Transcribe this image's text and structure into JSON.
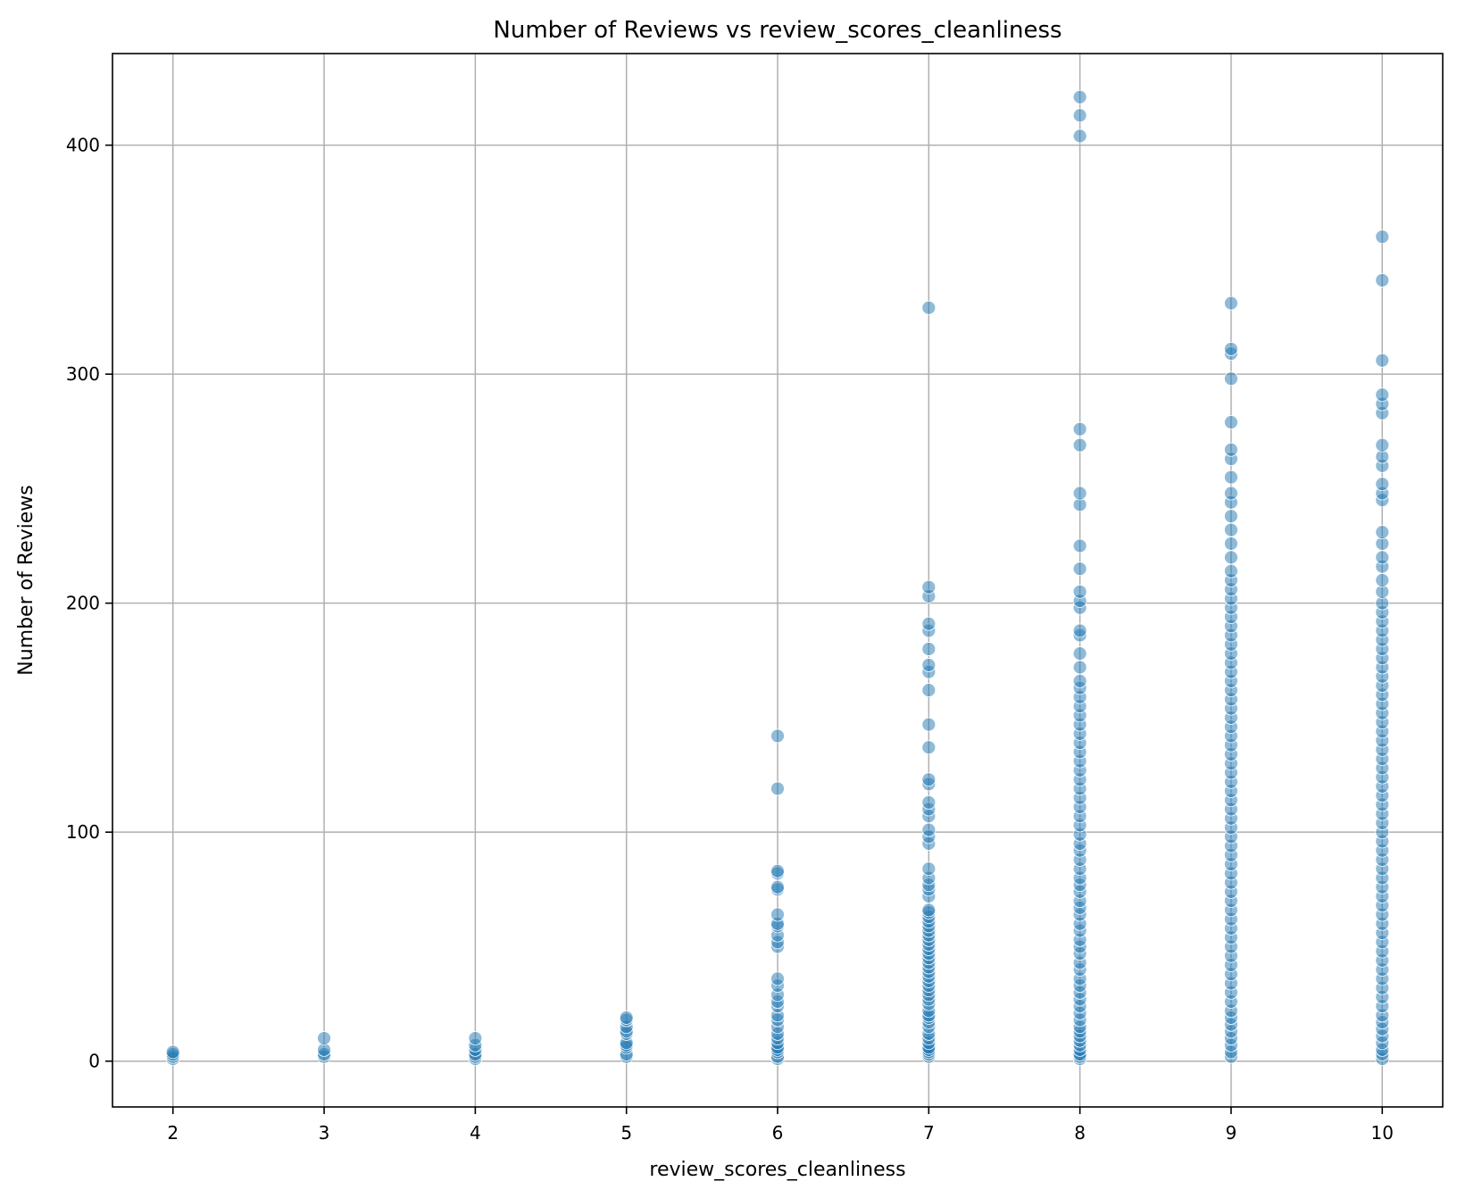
{
  "chart_data": {
    "type": "scatter",
    "title": "Number of Reviews vs review_scores_cleanliness",
    "xlabel": "review_scores_cleanliness",
    "ylabel": "Number of Reviews",
    "xlim": [
      1.6,
      10.4
    ],
    "ylim": [
      -20,
      440
    ],
    "xticks": [
      2,
      3,
      4,
      5,
      6,
      7,
      8,
      9,
      10
    ],
    "yticks": [
      0,
      100,
      200,
      300,
      400
    ],
    "grid": true,
    "point_color": "#1f77b4",
    "series": [
      {
        "points": [
          [
            2,
            1
          ],
          [
            2,
            2
          ],
          [
            2,
            3
          ],
          [
            2,
            4
          ],
          [
            3,
            2
          ],
          [
            3,
            3
          ],
          [
            3,
            5
          ],
          [
            3,
            10
          ],
          [
            4,
            1
          ],
          [
            4,
            2
          ],
          [
            4,
            3
          ],
          [
            4,
            5
          ],
          [
            4,
            7
          ],
          [
            4,
            10
          ],
          [
            5,
            2
          ],
          [
            5,
            3
          ],
          [
            5,
            6
          ],
          [
            5,
            7
          ],
          [
            5,
            8
          ],
          [
            5,
            12
          ],
          [
            5,
            13
          ],
          [
            5,
            15
          ],
          [
            5,
            18
          ],
          [
            5,
            19
          ],
          [
            6,
            1
          ],
          [
            6,
            2
          ],
          [
            6,
            4
          ],
          [
            6,
            5
          ],
          [
            6,
            6
          ],
          [
            6,
            8
          ],
          [
            6,
            10
          ],
          [
            6,
            12
          ],
          [
            6,
            15
          ],
          [
            6,
            18
          ],
          [
            6,
            20
          ],
          [
            6,
            24
          ],
          [
            6,
            26
          ],
          [
            6,
            29
          ],
          [
            6,
            33
          ],
          [
            6,
            36
          ],
          [
            6,
            50
          ],
          [
            6,
            52
          ],
          [
            6,
            55
          ],
          [
            6,
            59
          ],
          [
            6,
            60
          ],
          [
            6,
            64
          ],
          [
            6,
            75
          ],
          [
            6,
            76
          ],
          [
            6,
            82
          ],
          [
            6,
            83
          ],
          [
            6,
            119
          ],
          [
            6,
            142
          ],
          [
            7,
            2
          ],
          [
            7,
            3
          ],
          [
            7,
            4
          ],
          [
            7,
            5
          ],
          [
            7,
            6
          ],
          [
            7,
            8
          ],
          [
            7,
            10
          ],
          [
            7,
            12
          ],
          [
            7,
            15
          ],
          [
            7,
            17
          ],
          [
            7,
            19
          ],
          [
            7,
            20
          ],
          [
            7,
            22
          ],
          [
            7,
            25
          ],
          [
            7,
            27
          ],
          [
            7,
            29
          ],
          [
            7,
            31
          ],
          [
            7,
            33
          ],
          [
            7,
            35
          ],
          [
            7,
            37
          ],
          [
            7,
            39
          ],
          [
            7,
            41
          ],
          [
            7,
            43
          ],
          [
            7,
            45
          ],
          [
            7,
            47
          ],
          [
            7,
            49
          ],
          [
            7,
            51
          ],
          [
            7,
            53
          ],
          [
            7,
            55
          ],
          [
            7,
            57
          ],
          [
            7,
            59
          ],
          [
            7,
            61
          ],
          [
            7,
            63
          ],
          [
            7,
            65
          ],
          [
            7,
            66
          ],
          [
            7,
            72
          ],
          [
            7,
            75
          ],
          [
            7,
            77
          ],
          [
            7,
            80
          ],
          [
            7,
            84
          ],
          [
            7,
            95
          ],
          [
            7,
            98
          ],
          [
            7,
            101
          ],
          [
            7,
            107
          ],
          [
            7,
            110
          ],
          [
            7,
            113
          ],
          [
            7,
            121
          ],
          [
            7,
            123
          ],
          [
            7,
            137
          ],
          [
            7,
            147
          ],
          [
            7,
            162
          ],
          [
            7,
            170
          ],
          [
            7,
            173
          ],
          [
            7,
            180
          ],
          [
            7,
            188
          ],
          [
            7,
            191
          ],
          [
            7,
            203
          ],
          [
            7,
            207
          ],
          [
            7,
            329
          ],
          [
            8,
            1
          ],
          [
            8,
            2
          ],
          [
            8,
            3
          ],
          [
            8,
            5
          ],
          [
            8,
            7
          ],
          [
            8,
            9
          ],
          [
            8,
            11
          ],
          [
            8,
            13
          ],
          [
            8,
            15
          ],
          [
            8,
            18
          ],
          [
            8,
            21
          ],
          [
            8,
            24
          ],
          [
            8,
            27
          ],
          [
            8,
            30
          ],
          [
            8,
            33
          ],
          [
            8,
            36
          ],
          [
            8,
            40
          ],
          [
            8,
            43
          ],
          [
            8,
            47
          ],
          [
            8,
            50
          ],
          [
            8,
            53
          ],
          [
            8,
            57
          ],
          [
            8,
            60
          ],
          [
            8,
            64
          ],
          [
            8,
            67
          ],
          [
            8,
            70
          ],
          [
            8,
            74
          ],
          [
            8,
            77
          ],
          [
            8,
            80
          ],
          [
            8,
            84
          ],
          [
            8,
            88
          ],
          [
            8,
            92
          ],
          [
            8,
            95
          ],
          [
            8,
            99
          ],
          [
            8,
            103
          ],
          [
            8,
            107
          ],
          [
            8,
            111
          ],
          [
            8,
            115
          ],
          [
            8,
            119
          ],
          [
            8,
            123
          ],
          [
            8,
            127
          ],
          [
            8,
            131
          ],
          [
            8,
            135
          ],
          [
            8,
            139
          ],
          [
            8,
            143
          ],
          [
            8,
            147
          ],
          [
            8,
            151
          ],
          [
            8,
            155
          ],
          [
            8,
            159
          ],
          [
            8,
            163
          ],
          [
            8,
            166
          ],
          [
            8,
            172
          ],
          [
            8,
            178
          ],
          [
            8,
            186
          ],
          [
            8,
            188
          ],
          [
            8,
            198
          ],
          [
            8,
            201
          ],
          [
            8,
            205
          ],
          [
            8,
            215
          ],
          [
            8,
            225
          ],
          [
            8,
            243
          ],
          [
            8,
            248
          ],
          [
            8,
            269
          ],
          [
            8,
            276
          ],
          [
            8,
            404
          ],
          [
            8,
            413
          ],
          [
            8,
            421
          ],
          [
            9,
            2
          ],
          [
            9,
            4
          ],
          [
            9,
            7
          ],
          [
            9,
            10
          ],
          [
            9,
            13
          ],
          [
            9,
            16
          ],
          [
            9,
            19
          ],
          [
            9,
            22
          ],
          [
            9,
            26
          ],
          [
            9,
            30
          ],
          [
            9,
            34
          ],
          [
            9,
            38
          ],
          [
            9,
            42
          ],
          [
            9,
            46
          ],
          [
            9,
            50
          ],
          [
            9,
            54
          ],
          [
            9,
            58
          ],
          [
            9,
            62
          ],
          [
            9,
            66
          ],
          [
            9,
            70
          ],
          [
            9,
            74
          ],
          [
            9,
            78
          ],
          [
            9,
            82
          ],
          [
            9,
            86
          ],
          [
            9,
            90
          ],
          [
            9,
            94
          ],
          [
            9,
            98
          ],
          [
            9,
            102
          ],
          [
            9,
            106
          ],
          [
            9,
            110
          ],
          [
            9,
            114
          ],
          [
            9,
            118
          ],
          [
            9,
            122
          ],
          [
            9,
            126
          ],
          [
            9,
            130
          ],
          [
            9,
            134
          ],
          [
            9,
            138
          ],
          [
            9,
            142
          ],
          [
            9,
            146
          ],
          [
            9,
            150
          ],
          [
            9,
            154
          ],
          [
            9,
            158
          ],
          [
            9,
            162
          ],
          [
            9,
            166
          ],
          [
            9,
            170
          ],
          [
            9,
            174
          ],
          [
            9,
            178
          ],
          [
            9,
            182
          ],
          [
            9,
            186
          ],
          [
            9,
            190
          ],
          [
            9,
            194
          ],
          [
            9,
            198
          ],
          [
            9,
            202
          ],
          [
            9,
            206
          ],
          [
            9,
            210
          ],
          [
            9,
            214
          ],
          [
            9,
            220
          ],
          [
            9,
            226
          ],
          [
            9,
            232
          ],
          [
            9,
            238
          ],
          [
            9,
            244
          ],
          [
            9,
            248
          ],
          [
            9,
            255
          ],
          [
            9,
            263
          ],
          [
            9,
            267
          ],
          [
            9,
            279
          ],
          [
            9,
            298
          ],
          [
            9,
            309
          ],
          [
            9,
            311
          ],
          [
            9,
            331
          ],
          [
            10,
            1
          ],
          [
            10,
            3
          ],
          [
            10,
            5
          ],
          [
            10,
            8
          ],
          [
            10,
            11
          ],
          [
            10,
            14
          ],
          [
            10,
            17
          ],
          [
            10,
            20
          ],
          [
            10,
            24
          ],
          [
            10,
            28
          ],
          [
            10,
            32
          ],
          [
            10,
            36
          ],
          [
            10,
            40
          ],
          [
            10,
            44
          ],
          [
            10,
            48
          ],
          [
            10,
            52
          ],
          [
            10,
            56
          ],
          [
            10,
            60
          ],
          [
            10,
            64
          ],
          [
            10,
            68
          ],
          [
            10,
            72
          ],
          [
            10,
            76
          ],
          [
            10,
            80
          ],
          [
            10,
            84
          ],
          [
            10,
            88
          ],
          [
            10,
            92
          ],
          [
            10,
            96
          ],
          [
            10,
            100
          ],
          [
            10,
            104
          ],
          [
            10,
            108
          ],
          [
            10,
            112
          ],
          [
            10,
            116
          ],
          [
            10,
            120
          ],
          [
            10,
            124
          ],
          [
            10,
            128
          ],
          [
            10,
            132
          ],
          [
            10,
            136
          ],
          [
            10,
            140
          ],
          [
            10,
            144
          ],
          [
            10,
            148
          ],
          [
            10,
            152
          ],
          [
            10,
            156
          ],
          [
            10,
            160
          ],
          [
            10,
            164
          ],
          [
            10,
            168
          ],
          [
            10,
            172
          ],
          [
            10,
            176
          ],
          [
            10,
            180
          ],
          [
            10,
            184
          ],
          [
            10,
            188
          ],
          [
            10,
            192
          ],
          [
            10,
            196
          ],
          [
            10,
            200
          ],
          [
            10,
            205
          ],
          [
            10,
            210
          ],
          [
            10,
            216
          ],
          [
            10,
            220
          ],
          [
            10,
            226
          ],
          [
            10,
            231
          ],
          [
            10,
            245
          ],
          [
            10,
            248
          ],
          [
            10,
            252
          ],
          [
            10,
            260
          ],
          [
            10,
            264
          ],
          [
            10,
            269
          ],
          [
            10,
            283
          ],
          [
            10,
            287
          ],
          [
            10,
            291
          ],
          [
            10,
            306
          ],
          [
            10,
            341
          ],
          [
            10,
            360
          ]
        ]
      }
    ]
  }
}
